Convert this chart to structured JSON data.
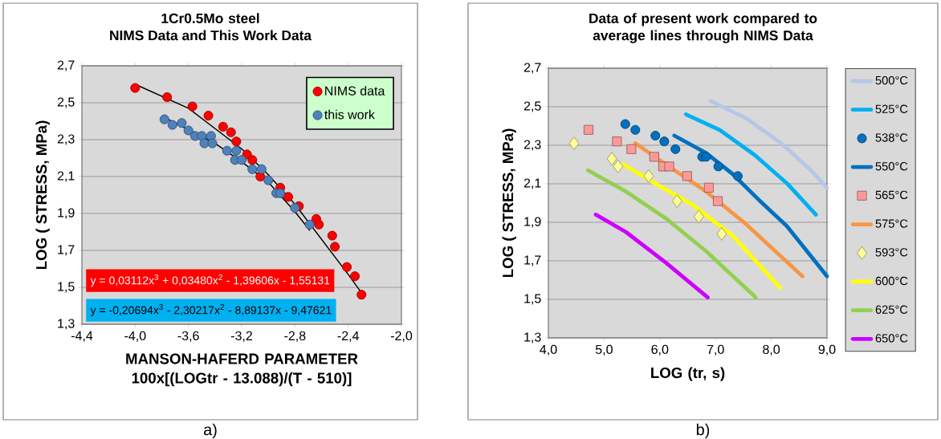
{
  "chart_data": [
    {
      "type": "scatter",
      "title": "1Cr0.5Mo steel",
      "subtitle": "NIMS Data and This Work Data",
      "xlabel": "MANSON-HAFERD PARAMETER 100x[(LOGtr - 13.088)/(T - 510)]",
      "ylabel": "LOG ( STRESS, MPa)",
      "xlim": [
        -4.4,
        -2.0
      ],
      "ylim": [
        1.3,
        2.7
      ],
      "xticks": [
        {
          "value": -4.4,
          "label": "-4,4"
        },
        {
          "value": -4.0,
          "label": "-4,0"
        },
        {
          "value": -3.6,
          "label": "-3,6"
        },
        {
          "value": -3.2,
          "label": "-3,2"
        },
        {
          "value": -2.8,
          "label": "-2,8"
        },
        {
          "value": -2.4,
          "label": "-2,4"
        },
        {
          "value": -2.0,
          "label": "-2,0"
        }
      ],
      "yticks": [
        {
          "value": 1.3,
          "label": "1,3"
        },
        {
          "value": 1.5,
          "label": "1,5"
        },
        {
          "value": 1.7,
          "label": "1,7"
        },
        {
          "value": 1.9,
          "label": "1,9"
        },
        {
          "value": 2.1,
          "label": "2,1"
        },
        {
          "value": 2.3,
          "label": "2,3"
        },
        {
          "value": 2.5,
          "label": "2,5"
        },
        {
          "value": 2.7,
          "label": "2,7"
        }
      ],
      "grid": "y",
      "legend": "top right",
      "series": [
        {
          "name": "NIMS data",
          "marker": "circle",
          "color": "#ff0000",
          "x": [
            -4.0,
            -3.76,
            -3.57,
            -3.45,
            -3.34,
            -3.28,
            -3.24,
            -3.16,
            -3.12,
            -3.06,
            -2.91,
            -2.85,
            -2.77,
            -2.64,
            -2.62,
            -2.52,
            -2.5,
            -2.41,
            -2.35,
            -2.3
          ],
          "values": [
            2.58,
            2.53,
            2.48,
            2.43,
            2.37,
            2.34,
            2.29,
            2.22,
            2.19,
            2.1,
            2.04,
            1.99,
            1.94,
            1.87,
            1.84,
            1.78,
            1.72,
            1.61,
            1.56,
            1.46
          ]
        },
        {
          "name": "this work",
          "marker": "circle",
          "color": "#4f81bd",
          "x": [
            -3.78,
            -3.72,
            -3.65,
            -3.6,
            -3.55,
            -3.5,
            -3.48,
            -3.43,
            -3.42,
            -3.31,
            -3.24,
            -3.25,
            -3.2,
            -3.12,
            -3.05,
            -3.0,
            -2.94,
            -2.91,
            -2.8,
            -2.69
          ],
          "values": [
            2.41,
            2.38,
            2.39,
            2.35,
            2.32,
            2.32,
            2.28,
            2.32,
            2.28,
            2.24,
            2.24,
            2.19,
            2.19,
            2.14,
            2.14,
            2.08,
            2.01,
            2.01,
            1.93,
            1.84
          ]
        },
        {
          "type": "line",
          "color": "#000000",
          "x": [
            -4.0,
            -3.6,
            -3.2,
            -3.0,
            -2.8,
            -2.4,
            -2.3
          ],
          "values": [
            2.6,
            2.47,
            2.25,
            2.11,
            1.95,
            1.57,
            1.47
          ]
        },
        {
          "type": "line",
          "color": "#000000",
          "x": [
            -3.78,
            -3.4,
            -3.2,
            -3.0,
            -2.8,
            -2.69
          ],
          "values": [
            2.42,
            2.28,
            2.18,
            2.07,
            1.91,
            1.81
          ]
        }
      ],
      "annotations": [
        "y = 0,03112x$^{3}$ + 0,03480x$^{2}$ - 1,39606x - 1,55131",
        "y = -0,20694x$^{3}$ - 2,30217x$^{2}$ - 8,89137x - 9,47621",
        "a)"
      ]
    },
    {
      "type": "line",
      "title": "Data of present work compared to average lines through NIMS Data",
      "xlabel": "LOG (tr, s)",
      "ylabel": "LOG ( STRESS, MPa)",
      "xlim": [
        4.0,
        9.0
      ],
      "ylim": [
        1.3,
        2.7
      ],
      "xticks": [
        {
          "value": 4.0,
          "label": "4,0"
        },
        {
          "value": 5.0,
          "label": "5,0"
        },
        {
          "value": 6.0,
          "label": "6,0"
        },
        {
          "value": 7.0,
          "label": "7,0"
        },
        {
          "value": 8.0,
          "label": "8,0"
        },
        {
          "value": 9.0,
          "label": "9,0"
        }
      ],
      "yticks": [
        {
          "value": 1.3,
          "label": "1,3"
        },
        {
          "value": 1.5,
          "label": "1,5"
        },
        {
          "value": 1.7,
          "label": "1,7"
        },
        {
          "value": 1.9,
          "label": "1,9"
        },
        {
          "value": 2.1,
          "label": "2,1"
        },
        {
          "value": 2.3,
          "label": "2,3"
        },
        {
          "value": 2.5,
          "label": "2,5"
        },
        {
          "value": 2.7,
          "label": "2,7"
        }
      ],
      "grid": "y",
      "legend": "right",
      "series": [
        {
          "name": "500°C",
          "color": "#b4c7e7",
          "x": [
            6.91,
            7.55,
            8.18,
            8.71,
            9.0
          ],
          "values": [
            2.53,
            2.44,
            2.31,
            2.17,
            2.08
          ]
        },
        {
          "name": "525°C",
          "color": "#00b0f0",
          "x": [
            6.47,
            7.07,
            7.7,
            8.29,
            8.8
          ],
          "values": [
            2.46,
            2.38,
            2.25,
            2.1,
            1.94
          ]
        },
        {
          "name": "538°C",
          "type": "scatter",
          "marker": "circle",
          "color": "#0070c0",
          "x": [
            5.38,
            5.56,
            5.92,
            6.08,
            6.28,
            6.76,
            6.83,
            7.05,
            7.4
          ],
          "values": [
            2.41,
            2.38,
            2.35,
            2.32,
            2.28,
            2.24,
            2.24,
            2.19,
            2.14
          ]
        },
        {
          "name": "550°C",
          "color": "#0070c0",
          "x": [
            6.26,
            6.83,
            7.31,
            7.8,
            8.28,
            9.0
          ],
          "values": [
            2.35,
            2.26,
            2.15,
            2.01,
            1.88,
            1.62
          ]
        },
        {
          "name": "565°C",
          "type": "scatter",
          "marker": "square",
          "color": "#ff9999",
          "x": [
            4.72,
            5.23,
            5.49,
            5.9,
            6.06,
            6.17,
            6.49,
            6.88,
            7.04
          ],
          "values": [
            2.38,
            2.32,
            2.28,
            2.24,
            2.19,
            2.19,
            2.14,
            2.08,
            2.01
          ]
        },
        {
          "name": "575°C",
          "color": "#f79646",
          "x": [
            5.56,
            6.16,
            6.83,
            7.55,
            8.56
          ],
          "values": [
            2.31,
            2.19,
            2.06,
            1.89,
            1.62
          ]
        },
        {
          "name": "593°C",
          "type": "scatter",
          "marker": "diamond",
          "color": "#ffff99",
          "x": [
            4.46,
            5.14,
            5.25,
            5.8,
            6.31,
            6.7,
            7.11
          ],
          "values": [
            2.31,
            2.23,
            2.19,
            2.14,
            2.01,
            1.93,
            1.84
          ]
        },
        {
          "name": "600°C",
          "color": "#ffff00",
          "x": [
            5.35,
            5.87,
            6.59,
            7.31,
            8.16
          ],
          "values": [
            2.2,
            2.11,
            1.99,
            1.83,
            1.56
          ]
        },
        {
          "name": "625°C",
          "color": "#92d050",
          "x": [
            4.71,
            5.39,
            6.11,
            6.83,
            7.72
          ],
          "values": [
            2.17,
            2.06,
            1.92,
            1.75,
            1.51
          ]
        },
        {
          "name": "650°C",
          "color": "#cc00ff",
          "x": [
            4.85,
            5.39,
            6.11,
            6.86
          ],
          "values": [
            1.94,
            1.85,
            1.69,
            1.51
          ]
        }
      ],
      "annotations": [
        "b)"
      ]
    }
  ]
}
